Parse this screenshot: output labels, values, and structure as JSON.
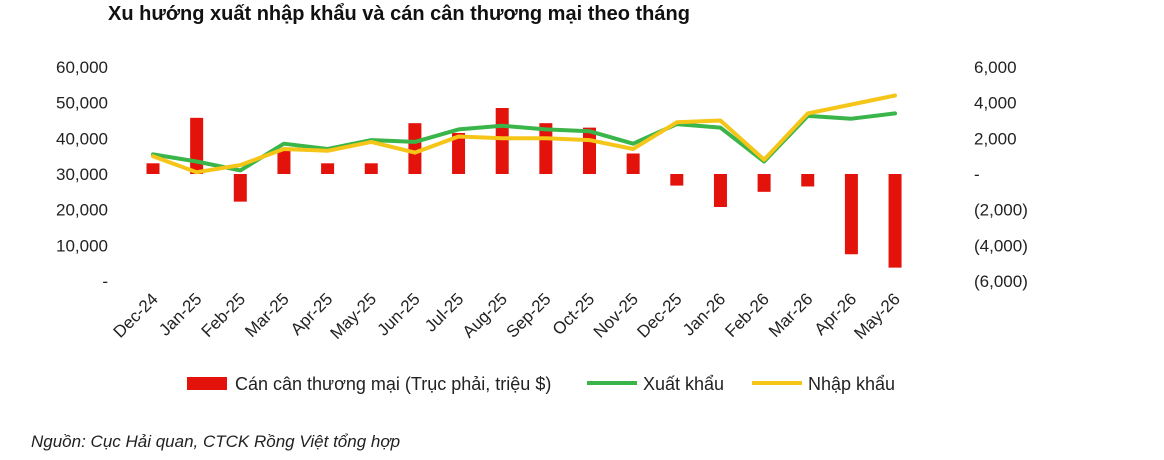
{
  "chart_data": {
    "type": "bar+line",
    "title": "Xu hướng xuất nhập khẩu và cán cân thương mại theo tháng",
    "categories": [
      "Dec-24",
      "Jan-25",
      "Feb-25",
      "Mar-25",
      "Apr-25",
      "May-25",
      "Jun-25",
      "Jul-25",
      "Aug-25",
      "Sep-25",
      "Oct-25",
      "Nov-25",
      "Dec-25",
      "Jan-26",
      "Feb-26",
      "Mar-26",
      "Apr-26",
      "May-26"
    ],
    "left_axis": {
      "ylim": [
        0,
        60000
      ],
      "ticks": [
        "-",
        "10,000",
        "20,000",
        "30,000",
        "40,000",
        "50,000",
        "60,000"
      ]
    },
    "right_axis": {
      "ylim": [
        -6000,
        6000
      ],
      "ticks": [
        "(6,000)",
        "(4,000)",
        "(2,000)",
        "-",
        "2,000",
        "4,000",
        "6,000"
      ]
    },
    "series": [
      {
        "name": "Cán cân thương mại (Trục phải, triệu $)",
        "type": "bar",
        "axis": "right",
        "color": "#e3120b",
        "values": [
          600,
          3150,
          -1550,
          1350,
          600,
          600,
          2850,
          2300,
          3700,
          2850,
          2600,
          1150,
          -650,
          -1850,
          -1000,
          -700,
          -4500,
          -5250
        ]
      },
      {
        "name": "Xuất khẩu",
        "type": "line",
        "axis": "left",
        "color": "#3ab54a",
        "values": [
          35500,
          33500,
          31000,
          38500,
          37000,
          39500,
          39000,
          42500,
          43500,
          42500,
          42000,
          38500,
          44000,
          43000,
          33500,
          46300,
          45500,
          47000
        ]
      },
      {
        "name": "Nhập khẩu",
        "type": "line",
        "axis": "left",
        "color": "#f5c518",
        "values": [
          35000,
          30500,
          32500,
          37000,
          36500,
          39000,
          36000,
          40500,
          40000,
          40000,
          39500,
          37000,
          44500,
          45000,
          34000,
          47000,
          49500,
          52000
        ]
      }
    ],
    "legend_position": "bottom",
    "grid": false
  },
  "source_note": "Nguồn: Cục Hải quan, CTCK Rồng Việt tổng hợp"
}
